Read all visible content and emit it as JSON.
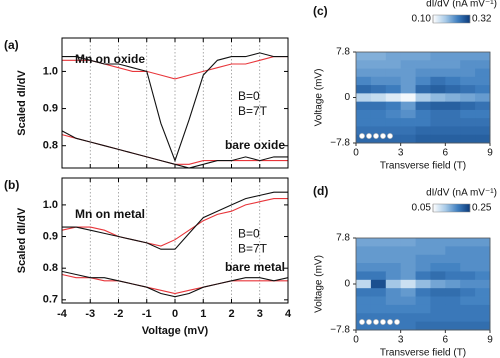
{
  "chart_data": [
    {
      "type": "line",
      "panel": "(a)",
      "ylabel": "Scaled dI/dV",
      "x": [
        -4,
        -3.5,
        -3,
        -2.5,
        -2,
        -1.5,
        -1,
        -0.5,
        0,
        0.5,
        1,
        1.5,
        2,
        2.5,
        3,
        3.5,
        4
      ],
      "xlim": [
        -4,
        4
      ],
      "xticks": [
        -4,
        -3,
        -2,
        -1,
        0,
        1,
        2,
        3,
        4
      ],
      "show_xticklabels": false,
      "ylim": [
        0.74,
        1.09
      ],
      "yticks": [
        0.8,
        0.9,
        {
          "value": 1.0,
          "label": "1.0"
        }
      ],
      "grid": "dotted-x",
      "annotations": [
        "Mn on oxide",
        "bare oxide"
      ],
      "series": [
        {
          "name": "B=0",
          "color": "#e8353a",
          "traces": [
            [
              1.03,
              1.03,
              1.03,
              1.02,
              1.01,
              1.0,
              1.0,
              0.99,
              0.98,
              0.99,
              1.0,
              1.01,
              1.02,
              1.02,
              1.03,
              1.04,
              1.04
            ],
            [
              0.83,
              0.82,
              0.81,
              0.8,
              0.79,
              0.78,
              0.77,
              0.76,
              0.75,
              0.75,
              0.76,
              0.76,
              0.76,
              0.76,
              0.76,
              0.76,
              0.76
            ]
          ]
        },
        {
          "name": "B=7T",
          "color": "#111111",
          "traces": [
            [
              1.04,
              1.04,
              1.03,
              1.02,
              1.02,
              1.01,
              1.0,
              0.86,
              0.76,
              0.87,
              0.99,
              1.03,
              1.04,
              1.04,
              1.05,
              1.04,
              1.04
            ],
            [
              0.84,
              0.82,
              0.81,
              0.8,
              0.79,
              0.78,
              0.77,
              0.76,
              0.75,
              0.74,
              0.75,
              0.76,
              0.76,
              0.77,
              0.76,
              0.77,
              0.77
            ]
          ]
        }
      ]
    },
    {
      "type": "line",
      "panel": "(b)",
      "ylabel": "Scaled dI/dV",
      "xlabel": "Voltage (mV)",
      "x": [
        -4,
        -3.5,
        -3,
        -2.5,
        -2,
        -1.5,
        -1,
        -0.5,
        0,
        0.5,
        1,
        1.5,
        2,
        2.5,
        3,
        3.5,
        4
      ],
      "xlim": [
        -4,
        4
      ],
      "xticks": [
        -4,
        -3,
        -2,
        -1,
        0,
        1,
        2,
        3,
        4
      ],
      "show_xticklabels": true,
      "ylim": [
        0.69,
        1.085
      ],
      "yticks": [
        0.7,
        0.8,
        0.9,
        {
          "value": 1.0,
          "label": "1.0"
        }
      ],
      "grid": "dotted-x",
      "annotations": [
        "Mn on metal",
        "bare metal"
      ],
      "series": [
        {
          "name": "B=0",
          "color": "#e8353a",
          "traces": [
            [
              0.92,
              0.93,
              0.93,
              0.92,
              0.9,
              0.89,
              0.88,
              0.87,
              0.89,
              0.92,
              0.95,
              0.97,
              0.98,
              1.0,
              1.01,
              1.02,
              1.02
            ],
            [
              0.78,
              0.77,
              0.77,
              0.76,
              0.76,
              0.75,
              0.74,
              0.73,
              0.72,
              0.73,
              0.74,
              0.75,
              0.76,
              0.76,
              0.76,
              0.76,
              0.76
            ]
          ]
        },
        {
          "name": "B=7T",
          "color": "#111111",
          "traces": [
            [
              0.93,
              0.93,
              0.92,
              0.91,
              0.9,
              0.89,
              0.88,
              0.86,
              0.86,
              0.91,
              0.96,
              0.98,
              1.0,
              1.02,
              1.03,
              1.04,
              1.04
            ],
            [
              0.79,
              0.78,
              0.77,
              0.77,
              0.76,
              0.75,
              0.74,
              0.72,
              0.71,
              0.72,
              0.74,
              0.75,
              0.76,
              0.77,
              0.77,
              0.76,
              0.77
            ]
          ]
        }
      ]
    },
    {
      "type": "heatmap",
      "panel": "(c)",
      "xlabel": "Transverse field (T)",
      "ylabel": "Voltage (mV)",
      "colorbar_label": "dI/dV (nA mV⁻¹)",
      "clim": [
        0.1,
        0.32
      ],
      "cticks": [
        {
          "value": 0.1,
          "label": "0.10"
        },
        0.32
      ],
      "colormap": [
        "#ffffff",
        "#a9cbe8",
        "#3f7fc0",
        "#0b3a7a"
      ],
      "xlim": [
        0,
        9
      ],
      "xticks": [
        0,
        3,
        6,
        9
      ],
      "ylim": [
        -7.8,
        7.8
      ],
      "yticks": [
        {
          "value": -7.8,
          "label": "−7.8"
        },
        0,
        7.8
      ],
      "x": [
        0.5,
        1.5,
        2.5,
        3.5,
        4.5,
        5.5,
        6.5,
        7.5,
        8.5
      ],
      "y": [
        7.09,
        5.67,
        4.25,
        2.84,
        1.42,
        0,
        -1.42,
        -2.84,
        -4.25,
        -5.67,
        -7.09
      ],
      "z": [
        [
          0.2,
          0.2,
          0.21,
          0.21,
          0.21,
          0.22,
          0.22,
          0.22,
          0.22
        ],
        [
          0.21,
          0.21,
          0.21,
          0.22,
          0.22,
          0.22,
          0.22,
          0.23,
          0.23
        ],
        [
          0.22,
          0.22,
          0.22,
          0.22,
          0.23,
          0.23,
          0.23,
          0.23,
          0.24
        ],
        [
          0.24,
          0.23,
          0.23,
          0.22,
          0.24,
          0.26,
          0.25,
          0.24,
          0.24
        ],
        [
          0.27,
          0.26,
          0.25,
          0.22,
          0.27,
          0.28,
          0.27,
          0.26,
          0.25
        ],
        [
          0.16,
          0.15,
          0.13,
          0.11,
          0.17,
          0.19,
          0.2,
          0.21,
          0.22
        ],
        [
          0.26,
          0.26,
          0.25,
          0.22,
          0.27,
          0.28,
          0.28,
          0.27,
          0.26
        ],
        [
          0.25,
          0.25,
          0.24,
          0.23,
          0.25,
          0.26,
          0.26,
          0.25,
          0.25
        ],
        [
          0.25,
          0.25,
          0.25,
          0.25,
          0.25,
          0.26,
          0.26,
          0.26,
          0.26
        ],
        [
          0.26,
          0.26,
          0.26,
          0.26,
          0.27,
          0.27,
          0.27,
          0.27,
          0.27
        ],
        [
          0.27,
          0.27,
          0.27,
          0.27,
          0.28,
          0.28,
          0.28,
          0.28,
          0.28
        ]
      ]
    },
    {
      "type": "heatmap",
      "panel": "(d)",
      "xlabel": "Transverse field (T)",
      "ylabel": "Voltage (mV)",
      "colorbar_label": "dI/dV (nA mV⁻¹)",
      "clim": [
        0.05,
        0.25
      ],
      "cticks": [
        {
          "value": 0.05,
          "label": "0.05"
        },
        0.25
      ],
      "colormap": [
        "#ffffff",
        "#a9cbe8",
        "#3f7fc0",
        "#0b3a7a"
      ],
      "xlim": [
        0,
        9
      ],
      "xticks": [
        0,
        3,
        6,
        9
      ],
      "ylim": [
        -7.8,
        7.8
      ],
      "yticks": [
        {
          "value": -7.8,
          "label": "−7.8"
        },
        0,
        7.8
      ],
      "x": [
        0.5,
        1.5,
        2.5,
        3.5,
        4.5,
        5.5,
        6.5,
        7.5,
        8.5
      ],
      "y": [
        7.09,
        5.67,
        4.25,
        2.84,
        1.42,
        0,
        -1.42,
        -2.84,
        -4.25,
        -5.67,
        -7.09
      ],
      "z": [
        [
          0.15,
          0.15,
          0.15,
          0.15,
          0.16,
          0.16,
          0.16,
          0.16,
          0.16
        ],
        [
          0.16,
          0.16,
          0.16,
          0.16,
          0.16,
          0.16,
          0.17,
          0.17,
          0.17
        ],
        [
          0.16,
          0.16,
          0.16,
          0.16,
          0.17,
          0.17,
          0.17,
          0.17,
          0.17
        ],
        [
          0.17,
          0.17,
          0.17,
          0.16,
          0.17,
          0.18,
          0.18,
          0.17,
          0.17
        ],
        [
          0.19,
          0.19,
          0.17,
          0.16,
          0.19,
          0.2,
          0.19,
          0.19,
          0.18
        ],
        [
          0.1,
          0.23,
          0.12,
          0.09,
          0.13,
          0.15,
          0.16,
          0.17,
          0.17
        ],
        [
          0.19,
          0.19,
          0.17,
          0.16,
          0.19,
          0.2,
          0.2,
          0.19,
          0.18
        ],
        [
          0.18,
          0.18,
          0.17,
          0.17,
          0.18,
          0.19,
          0.19,
          0.18,
          0.18
        ],
        [
          0.18,
          0.18,
          0.18,
          0.18,
          0.18,
          0.19,
          0.19,
          0.19,
          0.19
        ],
        [
          0.19,
          0.19,
          0.19,
          0.19,
          0.19,
          0.19,
          0.19,
          0.19,
          0.19
        ],
        [
          0.19,
          0.19,
          0.19,
          0.19,
          0.2,
          0.2,
          0.2,
          0.2,
          0.2
        ]
      ]
    }
  ]
}
